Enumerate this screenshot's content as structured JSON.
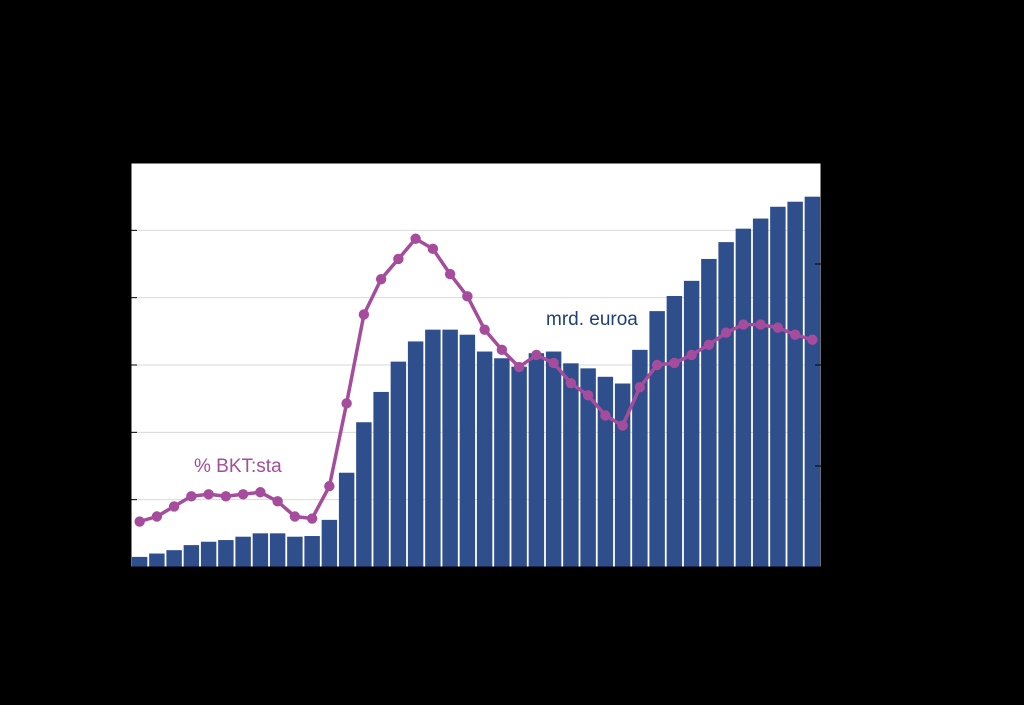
{
  "chart_data": {
    "type": "bar",
    "title": "",
    "xlabel": "",
    "ylabel": "",
    "grid": true,
    "legend": "none",
    "x": [
      1,
      2,
      3,
      4,
      5,
      6,
      7,
      8,
      9,
      10,
      11,
      12,
      13,
      14,
      15,
      16,
      17,
      18,
      19,
      20,
      21,
      22,
      23,
      24,
      25,
      26,
      27,
      28,
      29,
      30,
      31,
      32,
      33,
      34,
      35,
      36,
      37,
      38,
      39,
      40
    ],
    "series": [
      {
        "type": "bar",
        "axis": "left",
        "color": "#2E4E8C",
        "values": [
          3,
          4,
          5,
          6.5,
          7.5,
          8,
          9,
          10,
          10,
          9,
          9.2,
          14,
          28,
          43,
          52,
          61,
          67,
          70.5,
          70.5,
          69,
          64,
          62,
          59.5,
          63.5,
          64,
          60.5,
          59,
          56.5,
          54.5,
          64.5,
          76,
          80.5,
          85,
          91.5,
          96.5,
          100.5,
          103.5,
          107,
          108.5,
          110
        ]
      },
      {
        "type": "line",
        "axis": "right",
        "color": "#A54C9C",
        "values": [
          0.45,
          0.5,
          0.6,
          0.7,
          0.72,
          0.7,
          0.72,
          0.74,
          0.65,
          0.5,
          0.48,
          0.8,
          1.62,
          2.5,
          2.85,
          3.05,
          3.25,
          3.15,
          2.9,
          2.68,
          2.35,
          2.15,
          1.98,
          2.1,
          2.02,
          1.82,
          1.7,
          1.5,
          1.4,
          1.78,
          2.0,
          2.02,
          2.1,
          2.2,
          2.32,
          2.4,
          2.4,
          2.37,
          2.3,
          2.25
        ]
      }
    ],
    "ylim": [
      0,
      120
    ],
    "y2lim": [
      0,
      4
    ],
    "annotations": [
      {
        "text": "mrd. euroa",
        "series": 0,
        "color": "#1F3F7A"
      },
      {
        "text": "% BKT:sta",
        "series": 1,
        "color": "#A54C9C"
      }
    ]
  }
}
